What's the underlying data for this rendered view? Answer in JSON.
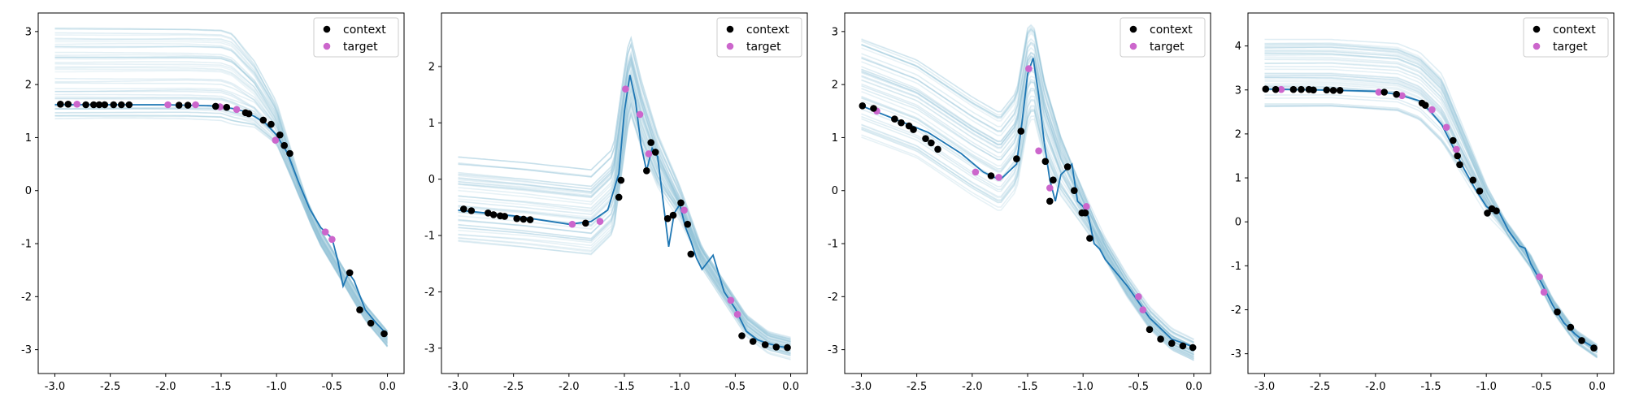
{
  "colors": {
    "context": "#000000",
    "target": "#cc66cc",
    "mean": "#1f77b4",
    "samples": "#8fc1d6"
  },
  "legend": {
    "context_label": "context",
    "target_label": "target",
    "location": "upper right"
  },
  "chart_data": [
    {
      "type": "line",
      "title": "",
      "xlabel": "",
      "ylabel": "",
      "xlim": [
        -3.15,
        0.15
      ],
      "ylim": [
        -3.45,
        3.35
      ],
      "xticks": [
        "-3.0",
        "-2.5",
        "-2.0",
        "-1.5",
        "-1.0",
        "-0.5",
        "0.0"
      ],
      "yticks": [
        "-3",
        "-2",
        "-1",
        "0",
        "1",
        "2",
        "3"
      ],
      "grid": false,
      "legend_position": "top-right",
      "series": [
        {
          "role": "mean",
          "x": [
            -3.0,
            -2.5,
            -2.0,
            -1.6,
            -1.4,
            -1.3,
            -1.2,
            -1.1,
            -1.0,
            -0.9,
            -0.8,
            -0.7,
            -0.6,
            -0.5,
            -0.45,
            -0.4,
            -0.35,
            -0.3,
            -0.2,
            -0.1,
            0.0
          ],
          "y": [
            1.62,
            1.62,
            1.62,
            1.6,
            1.55,
            1.5,
            1.4,
            1.27,
            1.05,
            0.7,
            0.15,
            -0.35,
            -0.7,
            -0.9,
            -1.3,
            -1.8,
            -1.55,
            -1.7,
            -2.25,
            -2.5,
            -2.72
          ]
        },
        {
          "role": "context",
          "x": [
            -2.95,
            -2.88,
            -2.72,
            -2.65,
            -2.6,
            -2.55,
            -2.47,
            -2.4,
            -2.33,
            -1.88,
            -1.8,
            -1.55,
            -1.45,
            -1.28,
            -1.25,
            -1.12,
            -1.05,
            -0.97,
            -0.93,
            -0.88,
            -0.34,
            -0.25,
            -0.15,
            -0.03
          ],
          "y": [
            1.63,
            1.63,
            1.62,
            1.62,
            1.62,
            1.62,
            1.62,
            1.62,
            1.62,
            1.61,
            1.61,
            1.59,
            1.57,
            1.47,
            1.45,
            1.33,
            1.25,
            1.05,
            0.85,
            0.7,
            -1.55,
            -2.25,
            -2.5,
            -2.7
          ]
        },
        {
          "role": "target",
          "x": [
            -2.8,
            -1.98,
            -1.73,
            -1.51,
            -1.36,
            -1.01,
            -0.56,
            -0.5
          ],
          "y": [
            1.63,
            1.62,
            1.62,
            1.58,
            1.53,
            0.95,
            -0.78,
            -0.92
          ]
        }
      ],
      "samples": {
        "count": 45,
        "left_range": [
          1.3,
          3.05
        ],
        "knots_x": [
          -3.0,
          -2.4,
          -1.8,
          -1.5,
          -1.2,
          -1.0,
          -0.8,
          -0.6,
          -0.4,
          -0.2,
          0.0
        ],
        "knots_y": [
          1.62,
          1.62,
          1.62,
          1.6,
          1.4,
          1.0,
          0.0,
          -0.9,
          -1.6,
          -2.3,
          -2.8
        ],
        "fan_start": -1.4,
        "fan_end": -0.7,
        "tail_spread": 0.15
      }
    },
    {
      "type": "line",
      "title": "",
      "xlabel": "",
      "ylabel": "",
      "xlim": [
        -3.15,
        0.15
      ],
      "ylim": [
        -3.45,
        2.95
      ],
      "xticks": [
        "-3.0",
        "-2.5",
        "-2.0",
        "-1.5",
        "-1.0",
        "-0.5",
        "0.0"
      ],
      "yticks": [
        "-3",
        "-2",
        "-1",
        "0",
        "1",
        "2"
      ],
      "grid": false,
      "legend_position": "top-right",
      "series": [
        {
          "role": "mean",
          "x": [
            -3.0,
            -2.5,
            -2.0,
            -1.8,
            -1.65,
            -1.55,
            -1.5,
            -1.45,
            -1.4,
            -1.35,
            -1.3,
            -1.25,
            -1.2,
            -1.15,
            -1.1,
            -1.05,
            -1.0,
            -0.95,
            -0.9,
            -0.85,
            -0.8,
            -0.7,
            -0.6,
            -0.5,
            -0.4,
            -0.3,
            -0.2,
            -0.1,
            0.0
          ],
          "y": [
            -0.55,
            -0.65,
            -0.8,
            -0.75,
            -0.55,
            0.1,
            1.2,
            1.85,
            1.4,
            0.6,
            0.15,
            0.55,
            0.4,
            -0.4,
            -1.2,
            -0.6,
            -0.45,
            -0.85,
            -1.1,
            -1.4,
            -1.6,
            -1.35,
            -2.0,
            -2.3,
            -2.7,
            -2.85,
            -2.92,
            -2.97,
            -3.0
          ]
        },
        {
          "role": "context",
          "x": [
            -2.95,
            -2.88,
            -2.73,
            -2.68,
            -2.62,
            -2.58,
            -2.47,
            -2.41,
            -2.35,
            -1.85,
            -1.55,
            -1.53,
            -1.3,
            -1.26,
            -1.22,
            -1.11,
            -1.06,
            -0.99,
            -0.93,
            -0.9,
            -0.44,
            -0.34,
            -0.23,
            -0.13,
            -0.03
          ],
          "y": [
            -0.53,
            -0.56,
            -0.6,
            -0.63,
            -0.65,
            -0.66,
            -0.7,
            -0.71,
            -0.72,
            -0.78,
            -0.32,
            -0.02,
            0.15,
            0.65,
            0.48,
            -0.7,
            -0.64,
            -0.42,
            -0.8,
            -1.33,
            -2.78,
            -2.88,
            -2.94,
            -2.98,
            -2.99
          ]
        },
        {
          "role": "target",
          "x": [
            -1.97,
            -1.72,
            -1.49,
            -1.36,
            -1.28,
            -0.96,
            -0.54,
            -0.48
          ],
          "y": [
            -0.8,
            -0.75,
            1.6,
            1.15,
            0.45,
            -0.55,
            -2.15,
            -2.4
          ]
        }
      ],
      "samples": {
        "count": 45,
        "left_range": [
          -1.15,
          0.4
        ],
        "knots_x": [
          -3.0,
          -2.4,
          -1.8,
          -1.6,
          -1.5,
          -1.45,
          -1.35,
          -1.2,
          -1.0,
          -0.8,
          -0.6,
          -0.4,
          -0.2,
          0.0
        ],
        "knots_y": [
          -0.55,
          -0.65,
          -0.78,
          -0.4,
          1.0,
          1.7,
          1.0,
          0.2,
          -0.5,
          -1.4,
          -2.0,
          -2.6,
          -2.9,
          -3.0
        ],
        "fan_start": -1.5,
        "fan_end": -0.8,
        "tail_spread": 0.2
      }
    },
    {
      "type": "line",
      "title": "",
      "xlabel": "",
      "ylabel": "",
      "xlim": [
        -3.15,
        0.15
      ],
      "ylim": [
        -3.45,
        3.35
      ],
      "xticks": [
        "-3.0",
        "-2.5",
        "-2.0",
        "-1.5",
        "-1.0",
        "-0.5",
        "0.0"
      ],
      "yticks": [
        "-3",
        "-2",
        "-1",
        "0",
        "1",
        "2",
        "3"
      ],
      "grid": false,
      "legend_position": "top-right",
      "series": [
        {
          "role": "mean",
          "x": [
            -3.0,
            -2.7,
            -2.4,
            -2.1,
            -1.9,
            -1.75,
            -1.6,
            -1.55,
            -1.5,
            -1.45,
            -1.4,
            -1.35,
            -1.3,
            -1.25,
            -1.2,
            -1.1,
            -1.05,
            -1.0,
            -0.95,
            -0.9,
            -0.85,
            -0.8,
            -0.6,
            -0.4,
            -0.2,
            0.0
          ],
          "y": [
            1.6,
            1.35,
            1.1,
            0.7,
            0.35,
            0.2,
            0.5,
            1.3,
            2.2,
            2.5,
            1.8,
            0.9,
            0.2,
            -0.2,
            0.3,
            0.5,
            -0.2,
            -0.3,
            -0.5,
            -1.0,
            -1.1,
            -1.3,
            -1.8,
            -2.4,
            -2.8,
            -2.95
          ]
        },
        {
          "role": "context",
          "x": [
            -2.99,
            -2.89,
            -2.7,
            -2.64,
            -2.57,
            -2.53,
            -2.42,
            -2.37,
            -2.31,
            -1.83,
            -1.6,
            -1.56,
            -1.34,
            -1.3,
            -1.27,
            -1.14,
            -1.08,
            -1.01,
            -0.98,
            -0.94,
            -0.4,
            -0.3,
            -0.2,
            -0.1,
            -0.01
          ],
          "y": [
            1.6,
            1.55,
            1.35,
            1.28,
            1.22,
            1.15,
            0.98,
            0.9,
            0.78,
            0.28,
            0.6,
            1.12,
            0.55,
            -0.2,
            0.2,
            0.45,
            0.0,
            -0.42,
            -0.42,
            -0.9,
            -2.62,
            -2.8,
            -2.88,
            -2.93,
            -2.96
          ]
        },
        {
          "role": "target",
          "x": [
            -2.86,
            -1.97,
            -1.76,
            -1.49,
            -1.4,
            -1.3,
            -0.97,
            -0.5,
            -0.46
          ],
          "y": [
            1.5,
            0.35,
            0.25,
            2.3,
            0.75,
            0.05,
            -0.3,
            -2.0,
            -2.25
          ]
        }
      ],
      "samples": {
        "count": 45,
        "left_range": [
          1.0,
          2.9
        ],
        "knots_x": [
          -3.0,
          -2.5,
          -2.0,
          -1.75,
          -1.6,
          -1.5,
          -1.45,
          -1.35,
          -1.2,
          -1.0,
          -0.8,
          -0.6,
          -0.4,
          -0.2,
          0.0
        ],
        "knots_y": [
          1.6,
          1.2,
          0.5,
          0.2,
          0.6,
          1.8,
          2.0,
          1.1,
          0.3,
          -0.4,
          -1.1,
          -1.8,
          -2.4,
          -2.8,
          -3.0
        ],
        "fan_start": -1.5,
        "fan_end": -0.8,
        "tail_spread": 0.2
      }
    },
    {
      "type": "line",
      "title": "",
      "xlabel": "",
      "ylabel": "",
      "xlim": [
        -3.15,
        0.15
      ],
      "ylim": [
        -3.45,
        4.75
      ],
      "xticks": [
        "-3.0",
        "-2.5",
        "-2.0",
        "-1.5",
        "-1.0",
        "-0.5",
        "0.0"
      ],
      "yticks": [
        "-3",
        "-2",
        "-1",
        "0",
        "1",
        "2",
        "3",
        "4"
      ],
      "grid": false,
      "legend_position": "top-right",
      "series": [
        {
          "role": "mean",
          "x": [
            -3.0,
            -2.5,
            -2.0,
            -1.8,
            -1.6,
            -1.5,
            -1.4,
            -1.3,
            -1.2,
            -1.1,
            -1.0,
            -0.95,
            -0.9,
            -0.8,
            -0.7,
            -0.65,
            -0.6,
            -0.5,
            -0.4,
            -0.3,
            -0.2,
            -0.1,
            0.0
          ],
          "y": [
            3.02,
            3.0,
            2.97,
            2.9,
            2.75,
            2.5,
            2.2,
            1.7,
            1.2,
            0.75,
            0.35,
            0.25,
            0.3,
            -0.2,
            -0.55,
            -0.6,
            -0.95,
            -1.4,
            -1.9,
            -2.3,
            -2.55,
            -2.75,
            -2.9
          ]
        },
        {
          "role": "context",
          "x": [
            -2.99,
            -2.9,
            -2.74,
            -2.67,
            -2.6,
            -2.56,
            -2.44,
            -2.38,
            -2.32,
            -1.92,
            -1.81,
            -1.58,
            -1.55,
            -1.3,
            -1.26,
            -1.24,
            -1.12,
            -1.06,
            -0.99,
            -0.95,
            -0.91,
            -0.36,
            -0.24,
            -0.14,
            -0.03
          ],
          "y": [
            3.02,
            3.01,
            3.01,
            3.01,
            3.01,
            3.0,
            3.0,
            2.99,
            2.99,
            2.95,
            2.9,
            2.7,
            2.65,
            1.85,
            1.5,
            1.3,
            0.95,
            0.7,
            0.2,
            0.3,
            0.25,
            -2.05,
            -2.4,
            -2.7,
            -2.87
          ]
        },
        {
          "role": "target",
          "x": [
            -2.85,
            -1.97,
            -1.76,
            -1.49,
            -1.36,
            -1.27,
            -0.52,
            -0.48
          ],
          "y": [
            3.01,
            2.95,
            2.87,
            2.55,
            2.15,
            1.65,
            -1.25,
            -1.6
          ]
        }
      ],
      "samples": {
        "count": 45,
        "left_range": [
          2.55,
          4.25
        ],
        "knots_x": [
          -3.0,
          -2.4,
          -1.8,
          -1.6,
          -1.4,
          -1.2,
          -1.0,
          -0.8,
          -0.6,
          -0.4,
          -0.2,
          0.0
        ],
        "knots_y": [
          3.0,
          3.0,
          2.9,
          2.7,
          2.2,
          1.3,
          0.4,
          -0.2,
          -0.9,
          -1.9,
          -2.6,
          -2.95
        ],
        "fan_start": -1.4,
        "fan_end": -0.8,
        "tail_spread": 0.15
      }
    }
  ]
}
